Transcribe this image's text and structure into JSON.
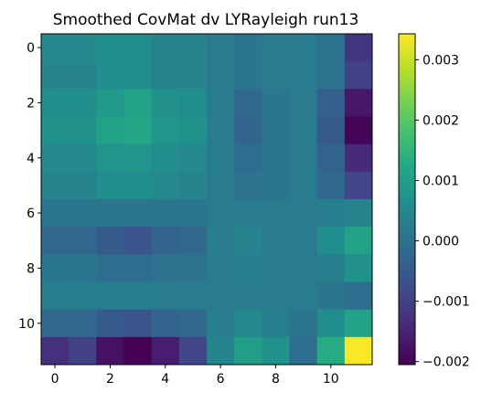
{
  "title": "Smoothed CovMat dv LYRayleigh run13",
  "chart_data": {
    "type": "heatmap",
    "title": "Smoothed CovMat dv LYRayleigh run13",
    "colormap": "viridis",
    "vmin": -0.00205,
    "vmax": 0.00343,
    "x_ticks": [
      0,
      2,
      4,
      6,
      8,
      10
    ],
    "y_ticks": [
      0,
      2,
      4,
      6,
      8,
      10
    ],
    "x_tick_labels": [
      "0",
      "2",
      "4",
      "6",
      "8",
      "10"
    ],
    "y_tick_labels": [
      "0",
      "2",
      "4",
      "6",
      "8",
      "10"
    ],
    "colorbar_ticks": [
      0.003,
      0.002,
      0.001,
      0.0,
      -0.001,
      -0.002
    ],
    "colorbar_tick_labels": [
      "0.003",
      "0.002",
      "0.001",
      "0.000",
      "−0.001",
      "−0.002"
    ],
    "rows": 12,
    "cols": 12,
    "values": [
      [
        0.0005,
        0.0005,
        0.0006,
        0.0006,
        0.0004,
        0.0004,
        0.0002,
        0.0001,
        0.0002,
        0.0002,
        0.0,
        -0.0012
      ],
      [
        0.0004,
        0.0004,
        0.0006,
        0.0006,
        0.0004,
        0.0004,
        0.0002,
        0.0001,
        0.0002,
        0.0002,
        0.0,
        -0.001
      ],
      [
        0.0006,
        0.0006,
        0.0009,
        0.0011,
        0.0007,
        0.0006,
        0.0002,
        -0.0002,
        0.0001,
        0.0002,
        -0.0004,
        -0.0017
      ],
      [
        0.0007,
        0.0007,
        0.0011,
        0.0012,
        0.0008,
        0.0007,
        0.0002,
        -0.0003,
        0.0001,
        0.0002,
        -0.0005,
        -0.002
      ],
      [
        0.0005,
        0.0005,
        0.0008,
        0.0008,
        0.0006,
        0.0005,
        0.0002,
        -0.0001,
        0.0001,
        0.0002,
        -0.0003,
        -0.0014
      ],
      [
        0.0004,
        0.0004,
        0.0006,
        0.0006,
        0.0005,
        0.0004,
        0.0002,
        0.0,
        0.0001,
        0.0002,
        -0.0002,
        -0.0009
      ],
      [
        0.0001,
        0.0001,
        0.0001,
        0.0001,
        0.0001,
        0.0001,
        0.0002,
        0.0002,
        0.0002,
        0.0002,
        0.0003,
        0.0004
      ],
      [
        -0.0002,
        -0.0002,
        -0.0005,
        -0.0006,
        -0.0003,
        -0.0002,
        0.0002,
        0.0004,
        0.0002,
        0.0002,
        0.0006,
        0.0011
      ],
      [
        0.0001,
        0.0001,
        -0.0001,
        -0.0001,
        0.0,
        0.0,
        0.0002,
        0.0003,
        0.0002,
        0.0002,
        0.0003,
        0.0007
      ],
      [
        0.0003,
        0.0003,
        0.0003,
        0.0003,
        0.0002,
        0.0002,
        0.0002,
        0.0002,
        0.0002,
        0.0002,
        0.0001,
        -0.0001
      ],
      [
        -0.0002,
        -0.0002,
        -0.0005,
        -0.0006,
        -0.0003,
        -0.0002,
        0.0002,
        0.0005,
        0.0003,
        0.0001,
        0.0006,
        0.0011
      ],
      [
        -0.0013,
        -0.001,
        -0.0018,
        -0.0021,
        -0.0016,
        -0.0009,
        0.0004,
        0.001,
        0.0007,
        -0.0001,
        0.0013,
        0.0034
      ]
    ]
  }
}
